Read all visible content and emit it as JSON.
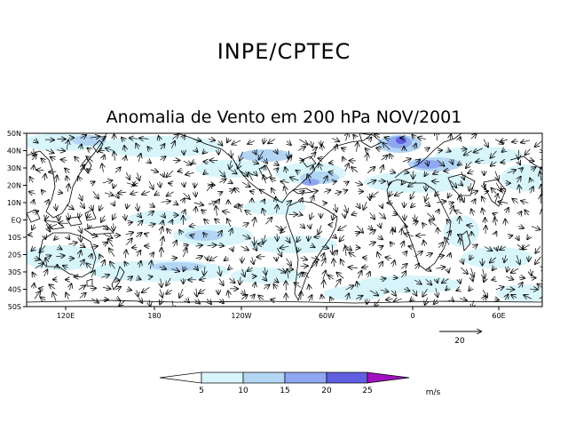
{
  "header": {
    "title": "INPE/CPTEC"
  },
  "map": {
    "subtitle": "Anomalia de Vento em 200 hPa NOV/2001",
    "lat_labels": [
      "50N",
      "40N",
      "30N",
      "20N",
      "10N",
      "EQ",
      "10S",
      "20S",
      "30S",
      "40S",
      "50S"
    ],
    "lon_labels": [
      "120E",
      "180",
      "120W",
      "60W",
      "0",
      "60E"
    ],
    "reference_vector": {
      "value": "20"
    },
    "colorbar": {
      "ticks": [
        "5",
        "10",
        "15",
        "20",
        "25"
      ],
      "units": "m/s",
      "colors": [
        "#ffffff",
        "#d7f5fb",
        "#b3d5f4",
        "#8fa7f0",
        "#5f5fe0",
        "#a010c0"
      ]
    },
    "colors": {
      "shade_5": "#d7f5fb",
      "shade_10": "#b3d5f4",
      "shade_15": "#8fa7f0",
      "shade_20": "#5f5fe0",
      "shade_25": "#a010c0"
    }
  }
}
